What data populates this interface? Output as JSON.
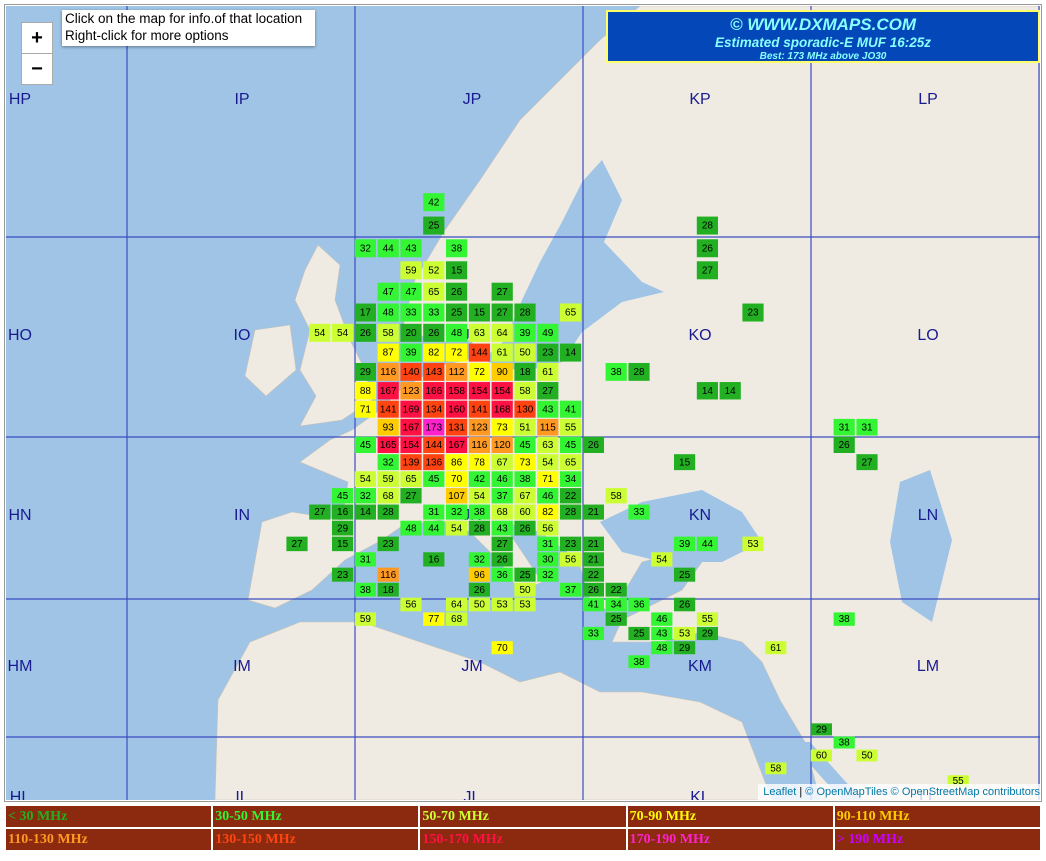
{
  "controls": {
    "zoom_in": "+",
    "zoom_out": "−"
  },
  "info": [
    "Click on the map for info.of that location",
    "Right-click for more options"
  ],
  "header": {
    "site": "© WWW.DXMAPS.COM",
    "title": "Estimated sporadic-E MUF 16:25z",
    "best": "Best: 173 MHz above JO30"
  },
  "fields": [
    [
      "HP",
      "IP",
      "JP",
      "KP",
      "LP"
    ],
    [
      "HO",
      "IO",
      "JO",
      "KO",
      "LO"
    ],
    [
      "HN",
      "IN",
      "JN",
      "KN",
      "LN"
    ],
    [
      "HM",
      "IM",
      "JM",
      "KM",
      "LM"
    ],
    [
      "HL",
      "IL",
      "JL",
      "KL",
      "LL"
    ]
  ],
  "muf": {
    "rows": [
      [
        null,
        null,
        null,
        null,
        null,
        null,
        42
      ],
      [
        null,
        null,
        null,
        null,
        null,
        null,
        25,
        null,
        null,
        null,
        null,
        null,
        null,
        null,
        null,
        null,
        null,
        null,
        28
      ],
      [
        null,
        null,
        null,
        32,
        44,
        43,
        null,
        38,
        null,
        null,
        null,
        null,
        null,
        null,
        null,
        null,
        null,
        null,
        26
      ],
      [
        null,
        null,
        null,
        null,
        null,
        59,
        52,
        15,
        null,
        null,
        null,
        null,
        null,
        null,
        null,
        null,
        null,
        null,
        27
      ],
      [
        null,
        null,
        null,
        null,
        47,
        47,
        65,
        26,
        null,
        27
      ],
      [
        null,
        null,
        null,
        17,
        48,
        33,
        33,
        25,
        15,
        27,
        28,
        null,
        65,
        null,
        null,
        null,
        null,
        null,
        null,
        null,
        23
      ],
      [
        null,
        54,
        54,
        26,
        58,
        20,
        26,
        48,
        63,
        64,
        39,
        49
      ],
      [
        null,
        null,
        null,
        null,
        87,
        39,
        82,
        72,
        144,
        61,
        50,
        23,
        14
      ],
      [
        null,
        null,
        null,
        29,
        116,
        140,
        143,
        112,
        72,
        90,
        18,
        61,
        null,
        null,
        38,
        28
      ],
      [
        null,
        null,
        null,
        88,
        167,
        123,
        166,
        158,
        154,
        154,
        58,
        27,
        null,
        null,
        null,
        null,
        null,
        null,
        14,
        14
      ],
      [
        null,
        null,
        null,
        71,
        141,
        169,
        134,
        160,
        141,
        168,
        130,
        43,
        41
      ],
      [
        null,
        null,
        null,
        null,
        93,
        167,
        173,
        131,
        123,
        73,
        51,
        115,
        55,
        null,
        null,
        null,
        null,
        null,
        null,
        null,
        null,
        null,
        null,
        null,
        31,
        31
      ],
      [
        null,
        null,
        null,
        45,
        165,
        154,
        144,
        167,
        116,
        120,
        45,
        63,
        45,
        26,
        null,
        null,
        null,
        null,
        null,
        null,
        null,
        null,
        null,
        null,
        26
      ],
      [
        null,
        null,
        null,
        null,
        32,
        139,
        136,
        86,
        78,
        67,
        73,
        54,
        65,
        null,
        null,
        null,
        null,
        15,
        null,
        null,
        null,
        null,
        null,
        null,
        null,
        27
      ],
      [
        null,
        null,
        null,
        54,
        59,
        65,
        45,
        70,
        42,
        46,
        38,
        71,
        34
      ],
      [
        null,
        null,
        45,
        32,
        68,
        27,
        null,
        107,
        54,
        37,
        67,
        46,
        22,
        null,
        58
      ],
      [
        null,
        27,
        16,
        14,
        28,
        null,
        31,
        32,
        38,
        68,
        60,
        82,
        28,
        21,
        null,
        33
      ],
      [
        null,
        null,
        29,
        null,
        null,
        48,
        44,
        54,
        28,
        43,
        26,
        56
      ],
      [
        27,
        null,
        15,
        null,
        23,
        null,
        null,
        null,
        null,
        27,
        null,
        31,
        23,
        21,
        null,
        null,
        null,
        39,
        44,
        null,
        53
      ],
      [
        null,
        null,
        null,
        31,
        null,
        null,
        16,
        null,
        32,
        26,
        null,
        30,
        56,
        21,
        null,
        null,
        54
      ],
      [
        null,
        null,
        23,
        null,
        116,
        null,
        null,
        null,
        96,
        36,
        25,
        32,
        null,
        22,
        null,
        null,
        null,
        25
      ],
      [
        null,
        null,
        null,
        38,
        18,
        null,
        null,
        null,
        26,
        null,
        50,
        null,
        37,
        26,
        22
      ],
      [
        null,
        null,
        null,
        null,
        null,
        56,
        null,
        64,
        50,
        53,
        53,
        null,
        null,
        41,
        34,
        36,
        null,
        26
      ],
      [
        null,
        null,
        null,
        59,
        null,
        null,
        77,
        68,
        null,
        null,
        null,
        null,
        null,
        null,
        25,
        null,
        46,
        null,
        55,
        null,
        null,
        null,
        null,
        null,
        38
      ],
      [
        null,
        null,
        null,
        null,
        null,
        null,
        null,
        null,
        null,
        null,
        null,
        null,
        null,
        33,
        null,
        25,
        43,
        53,
        29
      ],
      [
        null,
        null,
        null,
        null,
        null,
        null,
        null,
        null,
        null,
        70,
        null,
        null,
        null,
        null,
        null,
        null,
        48,
        29,
        null,
        null,
        null,
        61
      ],
      [
        null,
        null,
        null,
        null,
        null,
        null,
        null,
        null,
        null,
        null,
        null,
        null,
        null,
        null,
        null,
        38
      ],
      [],
      [],
      [],
      [],
      [
        null,
        null,
        null,
        null,
        null,
        null,
        null,
        null,
        null,
        null,
        null,
        null,
        null,
        null,
        null,
        null,
        null,
        null,
        null,
        null,
        null,
        null,
        null,
        29
      ],
      [
        null,
        null,
        null,
        null,
        null,
        null,
        null,
        null,
        null,
        null,
        null,
        null,
        null,
        null,
        null,
        null,
        null,
        null,
        null,
        null,
        null,
        null,
        null,
        null,
        38
      ],
      [
        null,
        null,
        null,
        null,
        null,
        null,
        null,
        null,
        null,
        null,
        null,
        null,
        null,
        null,
        null,
        null,
        null,
        null,
        null,
        null,
        null,
        null,
        null,
        60,
        null,
        50
      ],
      [
        null,
        null,
        null,
        null,
        null,
        null,
        null,
        null,
        null,
        null,
        null,
        null,
        null,
        null,
        null,
        null,
        null,
        null,
        null,
        null,
        null,
        58
      ],
      [
        null,
        null,
        null,
        null,
        null,
        null,
        null,
        null,
        null,
        null,
        null,
        null,
        null,
        null,
        null,
        null,
        null,
        null,
        null,
        null,
        null,
        null,
        null,
        null,
        null,
        null,
        null,
        null,
        null,
        55
      ]
    ]
  },
  "legend": [
    {
      "label": "< 30 MHz",
      "color": "#22b022",
      "to": 30
    },
    {
      "label": "30-50 MHz",
      "color": "#33f533",
      "to": 50
    },
    {
      "label": "50-70 MHz",
      "color": "#ccff33",
      "to": 70
    },
    {
      "label": "70-90 MHz",
      "color": "#ffff00",
      "to": 90
    },
    {
      "label": "90-110 MHz",
      "color": "#ffcc00",
      "to": 110
    },
    {
      "label": "110-130 MHz",
      "color": "#ff9922",
      "to": 130
    },
    {
      "label": "130-150 MHz",
      "color": "#ff4411",
      "to": 150
    },
    {
      "label": "150-170 MHz",
      "color": "#ff1144",
      "to": 170
    },
    {
      "label": "170-190 MHz",
      "color": "#ff22cc",
      "to": 190
    },
    {
      "label": "> 190 MHz",
      "color": "#cc00ff"
    }
  ],
  "attribution": [
    "Leaflet",
    "© OpenMapTiles",
    "© OpenStreetMap contributors"
  ]
}
